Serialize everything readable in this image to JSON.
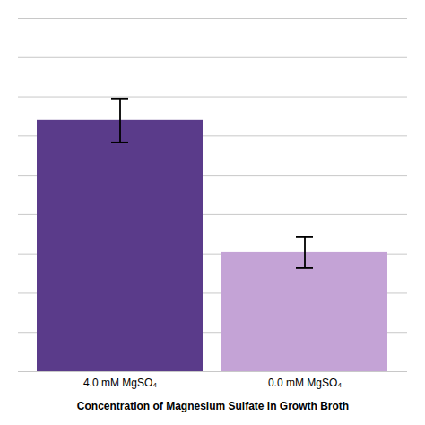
{
  "chart_data": {
    "type": "bar",
    "categories": [
      "4.0 mM MgSO₄",
      "0.0 mM MgSO₄"
    ],
    "values": [
      3.2,
      1.52
    ],
    "errors": [
      0.28,
      0.2
    ],
    "colors": [
      "#5a3b8a",
      "#c4a3d6"
    ],
    "xlabel": "Concentration of Magnesium Sulfate in Growth Broth",
    "ylim": [
      0,
      4.5
    ],
    "yticks": [
      0,
      0.5,
      1,
      1.5,
      2,
      2.5,
      3,
      3.5,
      4,
      4.5
    ],
    "grid": true,
    "tick_labels": "x"
  }
}
